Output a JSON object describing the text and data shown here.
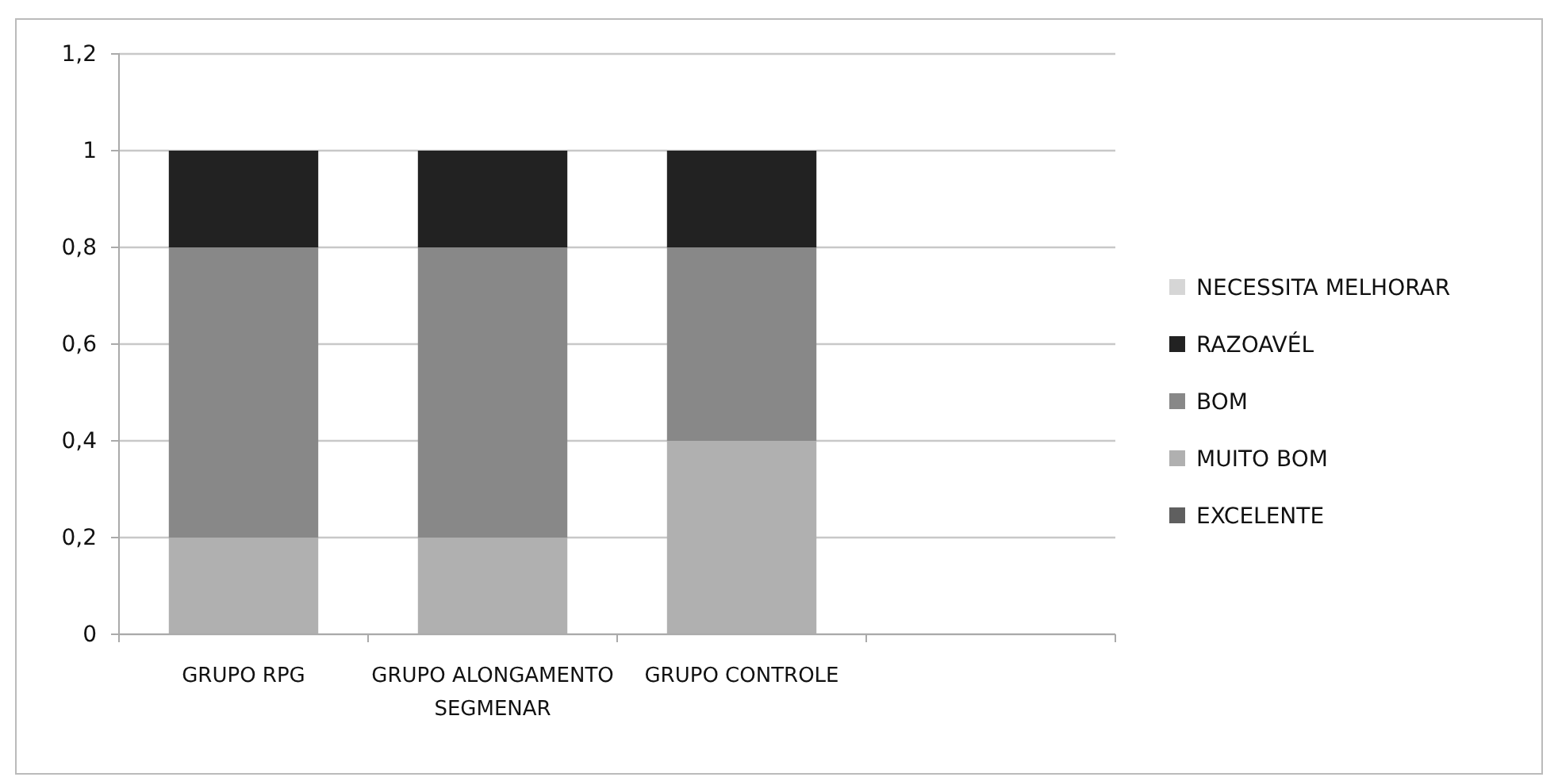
{
  "chart_data": {
    "type": "bar",
    "stacked": true,
    "categories": [
      "GRUPO RPG",
      "GRUPO ALONGAMENTO SEGMENAR",
      "GRUPO CONTROLE",
      null
    ],
    "series": [
      {
        "name": "EXCELENTE",
        "color": "#5f5f5f",
        "values": [
          0,
          0,
          0,
          null
        ]
      },
      {
        "name": "MUITO BOM",
        "color": "#b0b0b0",
        "values": [
          0.2,
          0.2,
          0.4,
          null
        ]
      },
      {
        "name": "BOM",
        "color": "#888888",
        "values": [
          0.6,
          0.6,
          0.4,
          null
        ]
      },
      {
        "name": "RAZOAVÉL",
        "color": "#222222",
        "values": [
          0.2,
          0.2,
          0.2,
          null
        ]
      },
      {
        "name": "NECESSITA MELHORAR",
        "color": "#d6d6d6",
        "values": [
          0,
          0,
          0,
          null
        ]
      }
    ],
    "ylim": [
      0,
      1.2
    ],
    "yticks": [
      0,
      {
        "value": 0.2,
        "label": "0,2"
      },
      {
        "value": 0.4,
        "label": "0,4"
      },
      {
        "value": 0.6,
        "label": "0,6"
      },
      {
        "value": 0.8,
        "label": "0,8"
      },
      1,
      {
        "value": 1.2,
        "label": "1,2"
      }
    ],
    "grid": "y",
    "legend": "right"
  }
}
